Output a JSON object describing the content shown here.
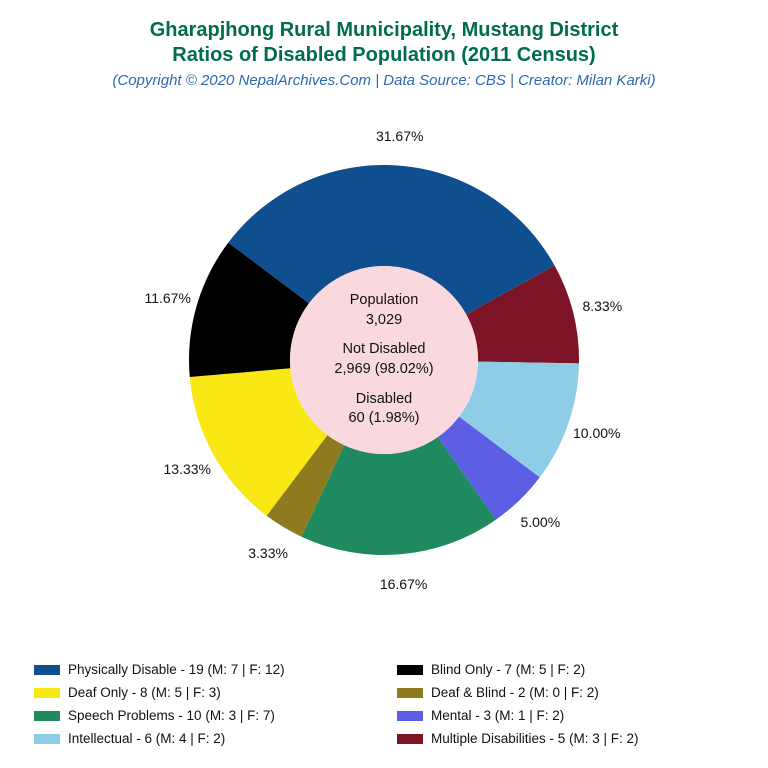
{
  "title": {
    "line1": "Gharapjhong Rural Municipality, Mustang District",
    "line2": "Ratios of Disabled Population (2011 Census)",
    "color": "#006c4f",
    "fontsize": 20
  },
  "subtitle": {
    "text": "(Copyright © 2020 NepalArchives.Com | Data Source: CBS | Creator: Milan Karki)",
    "color": "#2f68b0",
    "fontsize": 15
  },
  "donut": {
    "type": "pie",
    "background_color": "#ffffff",
    "inner_radius": 94,
    "outer_radius": 195,
    "center_fill": "#fad9de",
    "start_angle_deg": -53,
    "slices": [
      {
        "key": "physically_disable",
        "percent": 31.67,
        "label": "31.67%",
        "color": "#0f4f8f"
      },
      {
        "key": "multiple_disabilities",
        "percent": 8.33,
        "label": "8.33%",
        "color": "#7d1327"
      },
      {
        "key": "intellectual",
        "percent": 10.0,
        "label": "10.00%",
        "color": "#8fcce5"
      },
      {
        "key": "mental",
        "percent": 5.0,
        "label": "5.00%",
        "color": "#5c5ee3"
      },
      {
        "key": "speech_problems",
        "percent": 16.67,
        "label": "16.67%",
        "color": "#1f8a5f"
      },
      {
        "key": "deaf_and_blind",
        "percent": 3.33,
        "label": "3.33%",
        "color": "#8e7a1f"
      },
      {
        "key": "deaf_only",
        "percent": 13.33,
        "label": "13.33%",
        "color": "#f9e814"
      },
      {
        "key": "blind_only",
        "percent": 11.67,
        "label": "11.67%",
        "color": "#000000"
      }
    ],
    "label_fontsize": 14,
    "label_radius": 225
  },
  "center": {
    "population_label": "Population",
    "population_value": "3,029",
    "not_disabled_label": "Not Disabled",
    "not_disabled_value": "2,969 (98.02%)",
    "disabled_label": "Disabled",
    "disabled_value": "60 (1.98%)",
    "fontsize": 14.5
  },
  "legend": {
    "fontsize": 13.5,
    "items": [
      {
        "color": "#0f4f8f",
        "text": "Physically Disable - 19 (M: 7 | F: 12)"
      },
      {
        "color": "#000000",
        "text": "Blind Only - 7 (M: 5 | F: 2)"
      },
      {
        "color": "#f9e814",
        "text": "Deaf Only - 8 (M: 5 | F: 3)"
      },
      {
        "color": "#8e7a1f",
        "text": "Deaf & Blind - 2 (M: 0 | F: 2)"
      },
      {
        "color": "#1f8a5f",
        "text": "Speech Problems - 10 (M: 3 | F: 7)"
      },
      {
        "color": "#5c5ee3",
        "text": "Mental - 3 (M: 1 | F: 2)"
      },
      {
        "color": "#8fcce5",
        "text": "Intellectual - 6 (M: 4 | F: 2)"
      },
      {
        "color": "#7d1327",
        "text": "Multiple Disabilities - 5 (M: 3 | F: 2)"
      }
    ]
  }
}
